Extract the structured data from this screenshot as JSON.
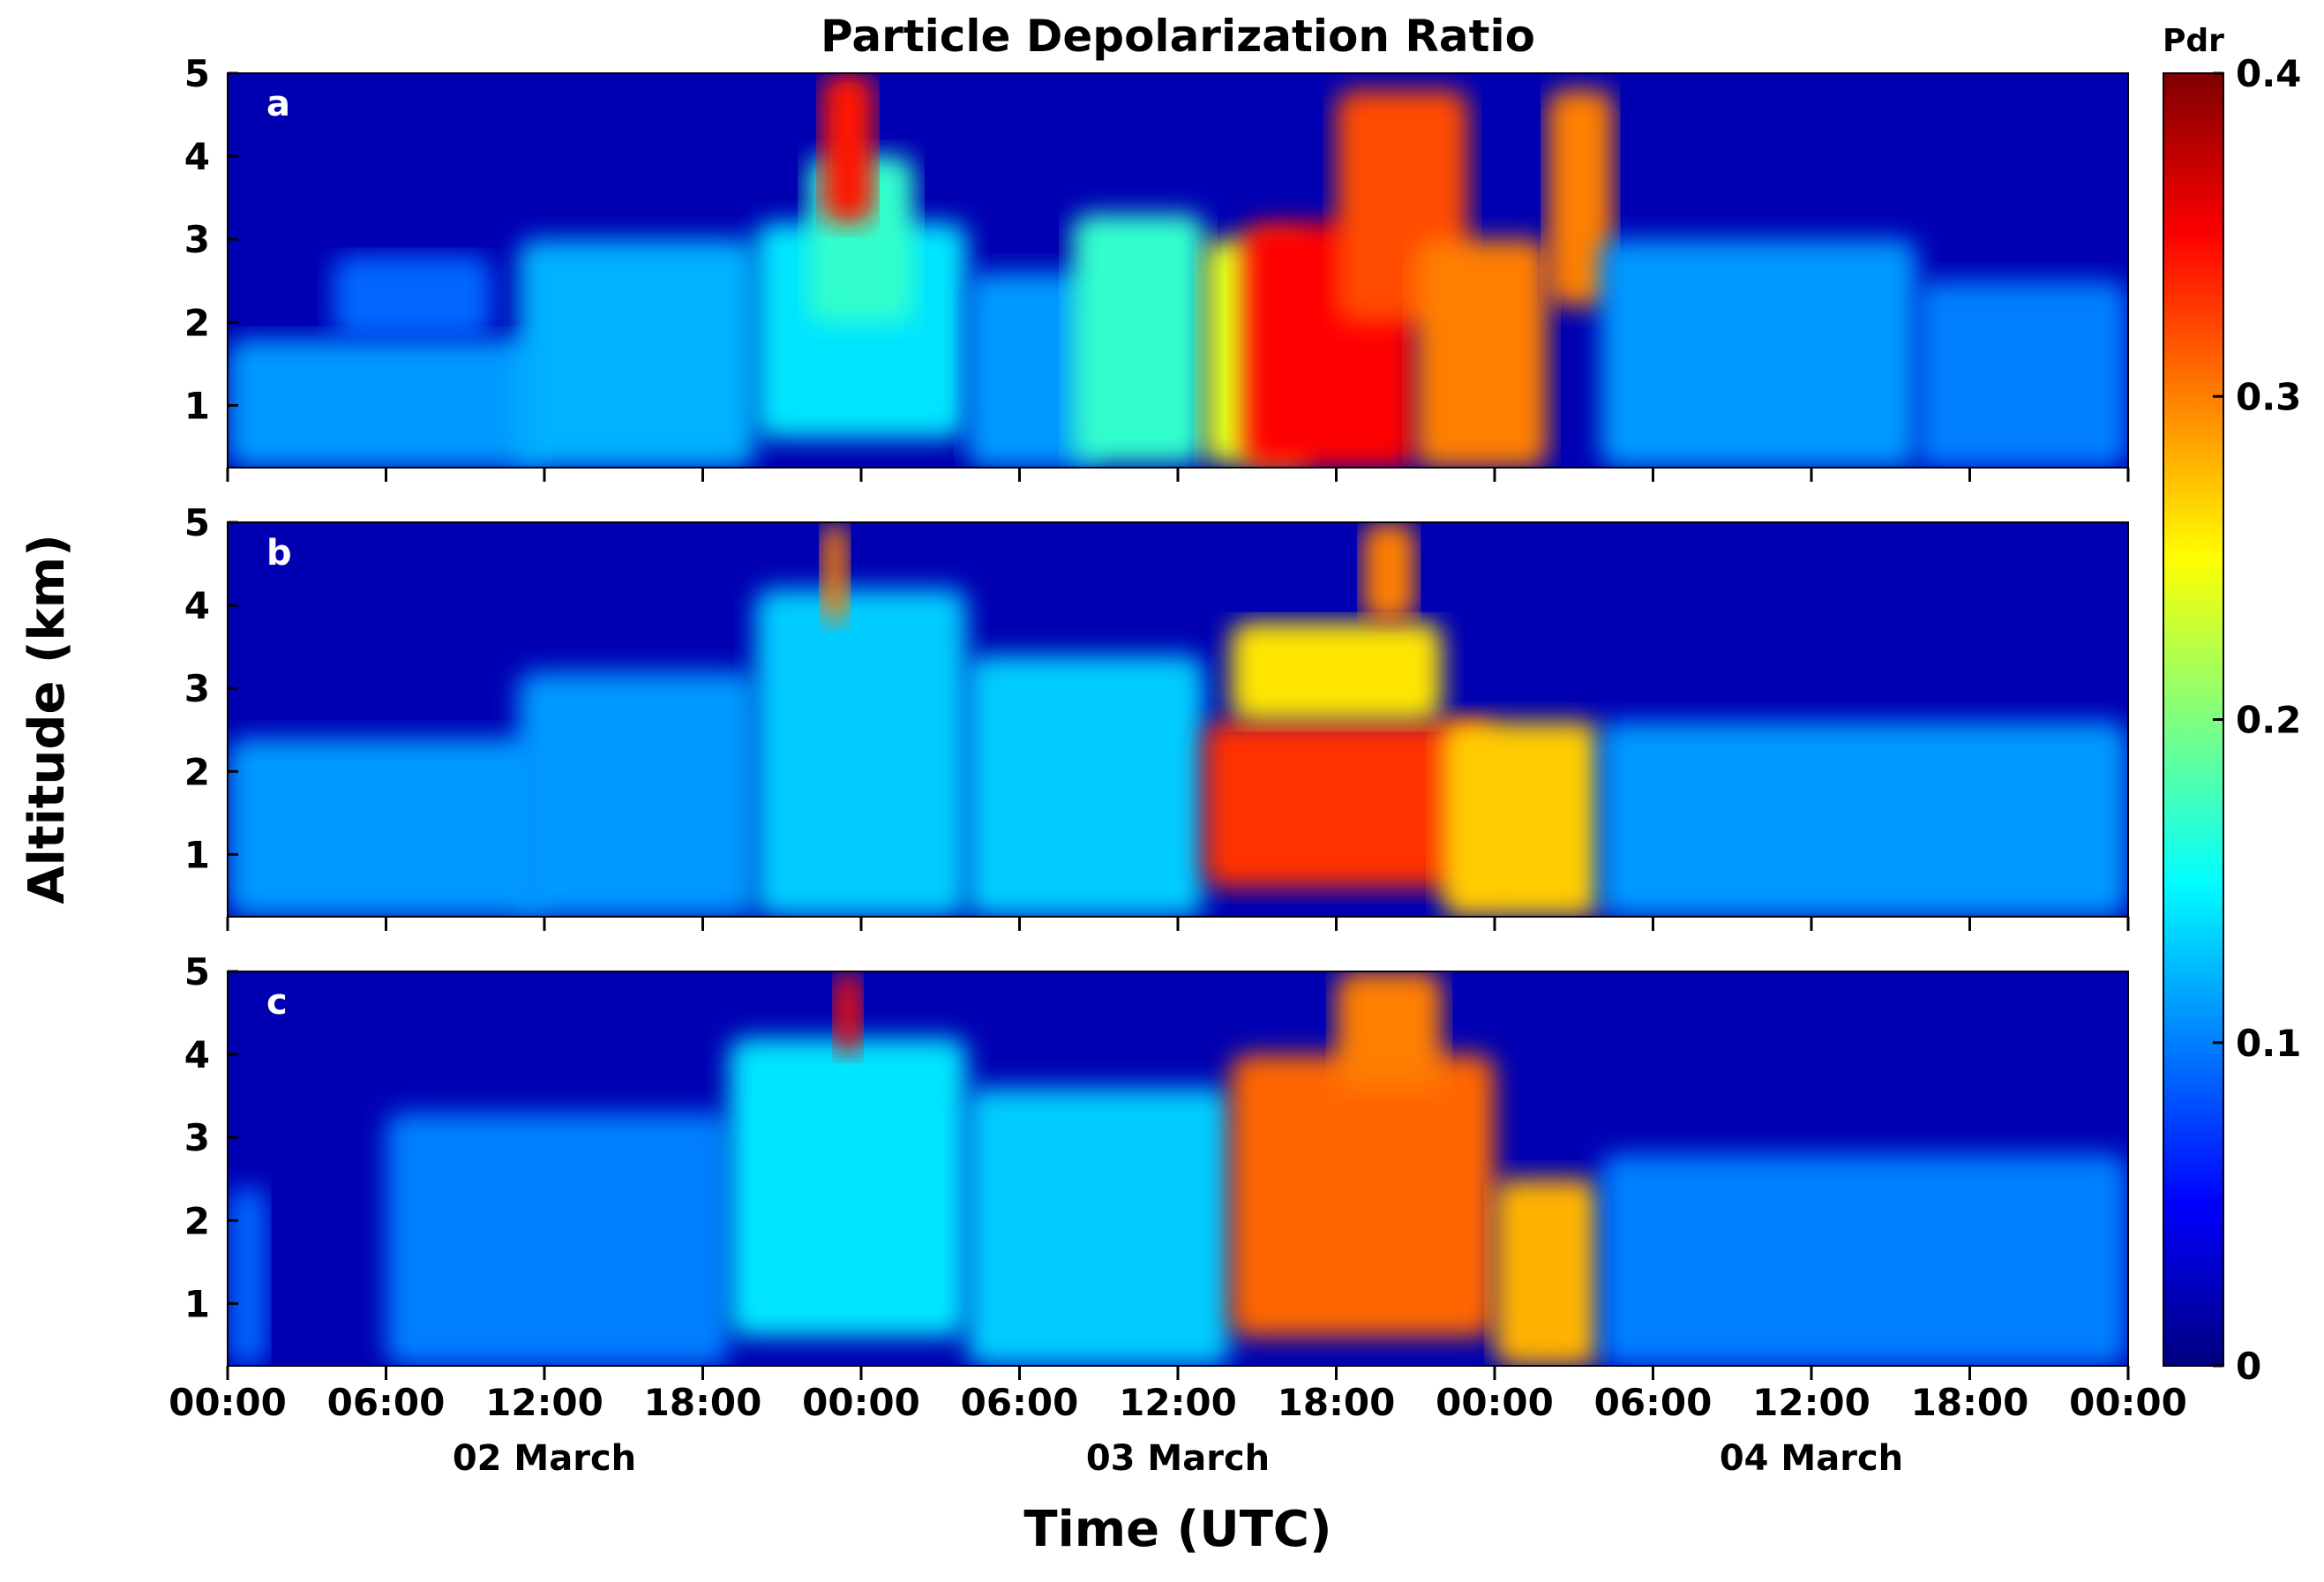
{
  "chart_data": {
    "type": "heatmap",
    "title": "Particle Depolarization Ratio",
    "xlabel": "Time (UTC)",
    "ylabel": "Altitude (km)",
    "x_ticks": [
      "00:00",
      "06:00",
      "12:00",
      "18:00",
      "00:00",
      "06:00",
      "12:00",
      "18:00",
      "00:00",
      "06:00",
      "12:00",
      "18:00",
      "00:00"
    ],
    "x_range_hours": [
      0,
      72
    ],
    "date_labels": [
      {
        "text": "02 March",
        "hour": 12
      },
      {
        "text": "03 March",
        "hour": 36
      },
      {
        "text": "04 March",
        "hour": 60
      }
    ],
    "y_ticks": [
      "1",
      "2",
      "3",
      "4",
      "5"
    ],
    "y_range_km": [
      0.25,
      5
    ],
    "colorbar": {
      "label": "Pdr",
      "range": [
        0,
        0.4
      ],
      "ticks": [
        "0",
        "0.1",
        "0.2",
        "0.3",
        "0.4"
      ],
      "colormap": [
        "#00007f",
        "#0000ff",
        "#007fff",
        "#00ffff",
        "#7fff7f",
        "#ffff00",
        "#ff7f00",
        "#ff0000",
        "#7f0000"
      ]
    },
    "panels": [
      {
        "label": "a",
        "background_value": 0.02,
        "features": [
          {
            "t0": 0,
            "t1": 12,
            "z0": 0.25,
            "z1": 1.8,
            "value": 0.11
          },
          {
            "t0": 4,
            "t1": 10,
            "z0": 1.8,
            "z1": 2.8,
            "value": 0.09
          },
          {
            "t0": 11,
            "t1": 20,
            "z0": 0.25,
            "z1": 3.0,
            "value": 0.12
          },
          {
            "t0": 20,
            "t1": 28,
            "z0": 0.6,
            "z1": 3.2,
            "value": 0.14
          },
          {
            "t0": 22,
            "t1": 26,
            "z0": 2.0,
            "z1": 4.0,
            "value": 0.17
          },
          {
            "t0": 22.5,
            "t1": 24.5,
            "z0": 3.2,
            "z1": 5.0,
            "value": 0.34
          },
          {
            "t0": 28,
            "t1": 33,
            "z0": 0.25,
            "z1": 2.6,
            "value": 0.11
          },
          {
            "t0": 32,
            "t1": 37,
            "z0": 0.3,
            "z1": 3.3,
            "value": 0.17
          },
          {
            "t0": 37,
            "t1": 41,
            "z0": 0.3,
            "z1": 3.0,
            "value": 0.24
          },
          {
            "t0": 38.5,
            "t1": 45,
            "z0": 0.25,
            "z1": 3.2,
            "value": 0.35
          },
          {
            "t0": 42,
            "t1": 47,
            "z0": 2.0,
            "z1": 4.8,
            "value": 0.32
          },
          {
            "t0": 45,
            "t1": 50,
            "z0": 0.25,
            "z1": 3.0,
            "value": 0.3
          },
          {
            "t0": 50,
            "t1": 52.5,
            "z0": 2.2,
            "z1": 4.8,
            "value": 0.3
          },
          {
            "t0": 52,
            "t1": 64,
            "z0": 0.25,
            "z1": 3.0,
            "value": 0.11
          },
          {
            "t0": 64,
            "t1": 72,
            "z0": 0.25,
            "z1": 2.5,
            "value": 0.1
          }
        ]
      },
      {
        "label": "b",
        "background_value": 0.02,
        "features": [
          {
            "t0": 0,
            "t1": 12,
            "z0": 0.25,
            "z1": 2.4,
            "value": 0.11
          },
          {
            "t0": 11,
            "t1": 20,
            "z0": 0.25,
            "z1": 3.2,
            "value": 0.11
          },
          {
            "t0": 20,
            "t1": 28,
            "z0": 0.25,
            "z1": 4.2,
            "value": 0.13
          },
          {
            "t0": 22.5,
            "t1": 23.5,
            "z0": 3.8,
            "z1": 5.0,
            "value": 0.3
          },
          {
            "t0": 28,
            "t1": 37,
            "z0": 0.25,
            "z1": 3.4,
            "value": 0.13
          },
          {
            "t0": 37,
            "t1": 48,
            "z0": 0.6,
            "z1": 2.6,
            "value": 0.33
          },
          {
            "t0": 38,
            "t1": 46,
            "z0": 2.6,
            "z1": 3.8,
            "value": 0.26
          },
          {
            "t0": 43,
            "t1": 45,
            "z0": 3.8,
            "z1": 5.0,
            "value": 0.3
          },
          {
            "t0": 46,
            "t1": 52,
            "z0": 0.25,
            "z1": 2.6,
            "value": 0.27
          },
          {
            "t0": 52,
            "t1": 72,
            "z0": 0.25,
            "z1": 2.6,
            "value": 0.11
          }
        ]
      },
      {
        "label": "c",
        "background_value": 0.02,
        "features": [
          {
            "t0": 0,
            "t1": 1.5,
            "z0": 0.25,
            "z1": 2.4,
            "value": 0.09
          },
          {
            "t0": 6,
            "t1": 19,
            "z0": 0.25,
            "z1": 3.3,
            "value": 0.1
          },
          {
            "t0": 19,
            "t1": 28,
            "z0": 0.6,
            "z1": 4.2,
            "value": 0.14
          },
          {
            "t0": 23,
            "t1": 24,
            "z0": 4.0,
            "z1": 5.0,
            "value": 0.34
          },
          {
            "t0": 28,
            "t1": 38,
            "z0": 0.25,
            "z1": 3.6,
            "value": 0.13
          },
          {
            "t0": 38,
            "t1": 48,
            "z0": 0.6,
            "z1": 4.0,
            "value": 0.31
          },
          {
            "t0": 42,
            "t1": 46,
            "z0": 3.6,
            "z1": 5.0,
            "value": 0.3
          },
          {
            "t0": 48,
            "t1": 52,
            "z0": 0.25,
            "z1": 2.5,
            "value": 0.28
          },
          {
            "t0": 52,
            "t1": 72,
            "z0": 0.25,
            "z1": 2.8,
            "value": 0.1
          }
        ]
      }
    ]
  }
}
